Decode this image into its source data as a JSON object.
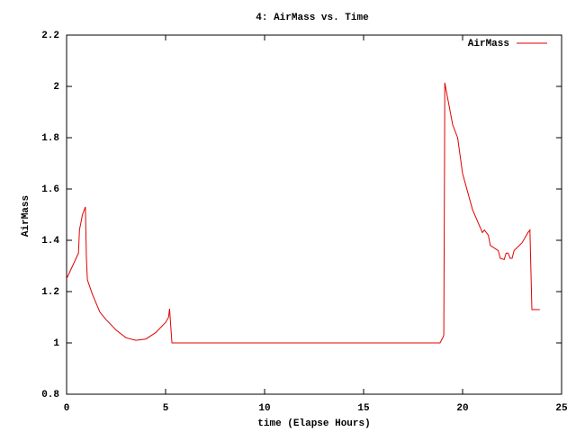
{
  "chart_data": {
    "type": "line",
    "title": "4: AirMass vs. Time",
    "x_label": "time (Elapse Hours)",
    "y_label": "AirMass",
    "x": [
      0,
      0.3,
      0.6,
      0.65,
      0.8,
      0.95,
      1.0,
      1.05,
      1.3,
      1.68,
      2.0,
      2.5,
      3.0,
      3.5,
      4.0,
      4.5,
      5.0,
      5.15,
      5.2,
      5.32,
      10,
      15,
      18.86,
      19.0,
      19.05,
      19.09,
      19.1,
      19.5,
      19.75,
      20.0,
      20.5,
      21.0,
      21.1,
      21.3,
      21.4,
      21.8,
      21.9,
      22.1,
      22.2,
      22.3,
      22.4,
      22.5,
      22.6,
      23.0,
      23.3,
      23.4,
      23.5,
      23.9
    ],
    "series": [
      {
        "name": "AirMass",
        "color": "#e00000",
        "values": [
          1.25,
          1.3,
          1.35,
          1.44,
          1.5,
          1.53,
          1.33,
          1.246,
          1.19,
          1.12,
          1.09,
          1.05,
          1.02,
          1.01,
          1.015,
          1.04,
          1.08,
          1.1,
          1.133,
          1.0,
          1.0,
          1.0,
          1.0,
          1.02,
          1.03,
          1.75,
          2.014,
          1.85,
          1.8,
          1.66,
          1.52,
          1.43,
          1.44,
          1.42,
          1.38,
          1.36,
          1.33,
          1.325,
          1.35,
          1.35,
          1.33,
          1.33,
          1.36,
          1.39,
          1.43,
          1.44,
          1.13,
          1.13
        ]
      }
    ],
    "xlim": [
      0,
      25
    ],
    "xticks": [
      0,
      5,
      10,
      15,
      20,
      25
    ],
    "ylim": [
      0.8,
      2.2
    ],
    "yticks": [
      0.8,
      1,
      1.2,
      1.4,
      1.6,
      1.8,
      2,
      2.2
    ],
    "legend": "top-right",
    "grid": false
  }
}
